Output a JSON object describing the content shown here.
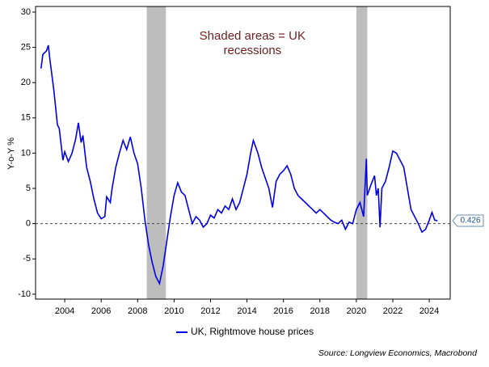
{
  "chart_data": {
    "type": "line",
    "y_label": "Y-o-Y %",
    "annotation": [
      "Shaded areas = UK",
      "recessions"
    ],
    "source": "Source: Longview Economics, Macrobond",
    "xlim": [
      2002.4,
      2025.15
    ],
    "xticks": [
      2004,
      2006,
      2008,
      2010,
      2012,
      2014,
      2016,
      2018,
      2020,
      2022,
      2024
    ],
    "ylim": [
      -10.7,
      30.8
    ],
    "yticks": [
      30,
      25,
      20,
      15,
      10,
      5,
      0,
      -5,
      -10
    ],
    "reference_line": 0,
    "recessions": [
      [
        2008.5,
        2009.55
      ],
      [
        2020.0,
        2020.6
      ]
    ],
    "recession_color": "#bdbdbd",
    "last_value": 0.426,
    "series": [
      {
        "name": "UK, Rightmove house prices",
        "color": "#0000e6",
        "x": [
          2002.7,
          2002.8,
          2003.0,
          2003.1,
          2003.2,
          2003.4,
          2003.6,
          2003.7,
          2003.9,
          2004.0,
          2004.2,
          2004.4,
          2004.6,
          2004.75,
          2004.9,
          2005.0,
          2005.2,
          2005.4,
          2005.6,
          2005.8,
          2006.0,
          2006.2,
          2006.3,
          2006.5,
          2006.6,
          2006.8,
          2007.0,
          2007.2,
          2007.4,
          2007.6,
          2007.8,
          2008.0,
          2008.2,
          2008.4,
          2008.6,
          2008.8,
          2009.0,
          2009.2,
          2009.4,
          2009.6,
          2009.8,
          2010.0,
          2010.2,
          2010.4,
          2010.6,
          2010.8,
          2011.0,
          2011.2,
          2011.4,
          2011.6,
          2011.8,
          2012.0,
          2012.2,
          2012.4,
          2012.6,
          2012.8,
          2013.0,
          2013.2,
          2013.4,
          2013.6,
          2013.8,
          2014.0,
          2014.2,
          2014.35,
          2014.6,
          2014.8,
          2015.0,
          2015.2,
          2015.4,
          2015.6,
          2015.8,
          2016.0,
          2016.2,
          2016.4,
          2016.6,
          2016.8,
          2017.0,
          2017.2,
          2017.4,
          2017.6,
          2017.8,
          2018.0,
          2018.2,
          2018.4,
          2018.6,
          2018.8,
          2019.0,
          2019.2,
          2019.4,
          2019.6,
          2019.8,
          2020.0,
          2020.2,
          2020.4,
          2020.55,
          2020.6,
          2020.8,
          2021.0,
          2021.1,
          2021.2,
          2021.3,
          2021.4,
          2021.6,
          2021.8,
          2022.0,
          2022.2,
          2022.4,
          2022.6,
          2022.8,
          2023.0,
          2023.2,
          2023.4,
          2023.6,
          2023.8,
          2024.0,
          2024.15,
          2024.3,
          2024.45
        ],
        "values": [
          22,
          24,
          24.5,
          25.3,
          23,
          19,
          14,
          13.5,
          9,
          10.2,
          8.8,
          10,
          12,
          14.3,
          11.5,
          12.5,
          8,
          6,
          3.5,
          1.5,
          0.7,
          1,
          3.8,
          3,
          5,
          8,
          10,
          11.8,
          10.5,
          12.3,
          10,
          8.5,
          5,
          0.5,
          -3,
          -5.5,
          -7.5,
          -8.5,
          -6,
          -2.5,
          1,
          4,
          5.8,
          4.5,
          4,
          2,
          0,
          1,
          0.5,
          -0.5,
          0,
          1.2,
          0.8,
          2,
          1.5,
          2.5,
          2,
          3.5,
          2,
          3,
          5,
          7,
          10,
          11.8,
          10,
          8,
          6.5,
          5,
          2.3,
          6,
          7,
          7.5,
          8.2,
          7,
          5,
          4,
          3.5,
          3,
          2.5,
          2,
          1.5,
          2,
          1.5,
          1,
          0.5,
          0.2,
          0,
          0.5,
          -0.8,
          0.2,
          0,
          2,
          3,
          1,
          9.2,
          4,
          5.5,
          6.8,
          4,
          5,
          -0.5,
          5,
          6,
          8,
          10.3,
          10,
          9,
          8,
          5,
          2,
          1,
          0,
          -1.2,
          -0.8,
          0.5,
          1.6,
          0.5,
          0.426
        ]
      }
    ]
  }
}
